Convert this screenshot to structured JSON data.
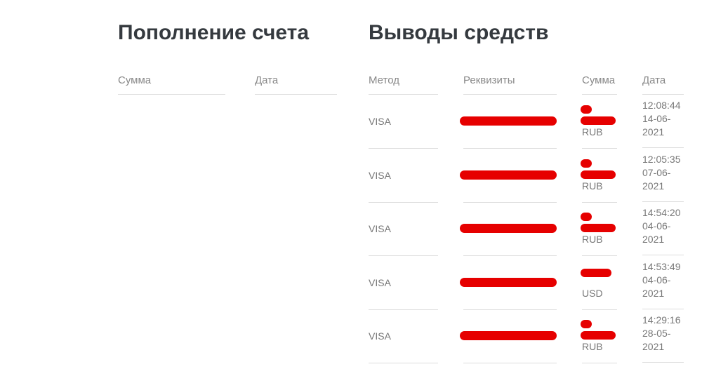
{
  "deposits": {
    "title": "Пополнение счета",
    "columns": [
      "Сумма",
      "Дата"
    ]
  },
  "withdrawals": {
    "title": "Выводы средств",
    "columns": [
      "Метод",
      "Реквизиты",
      "Сумма",
      "Дата"
    ],
    "rows": [
      {
        "method": "VISA",
        "currency": "RUB",
        "time": "12:08:44",
        "date1": "14-06-",
        "date2": "2021"
      },
      {
        "method": "VISA",
        "currency": "RUB",
        "time": "12:05:35",
        "date1": "07-06-",
        "date2": "2021"
      },
      {
        "method": "VISA",
        "currency": "RUB",
        "time": "14:54:20",
        "date1": "04-06-",
        "date2": "2021"
      },
      {
        "method": "VISA",
        "currency": "USD",
        "time": "14:53:49",
        "date1": "04-06-",
        "date2": "2021"
      },
      {
        "method": "VISA",
        "currency": "RUB",
        "time": "14:29:16",
        "date1": "28-05-",
        "date2": "2021"
      }
    ]
  },
  "colors": {
    "redaction": "#e60000",
    "title": "#353a3f"
  }
}
